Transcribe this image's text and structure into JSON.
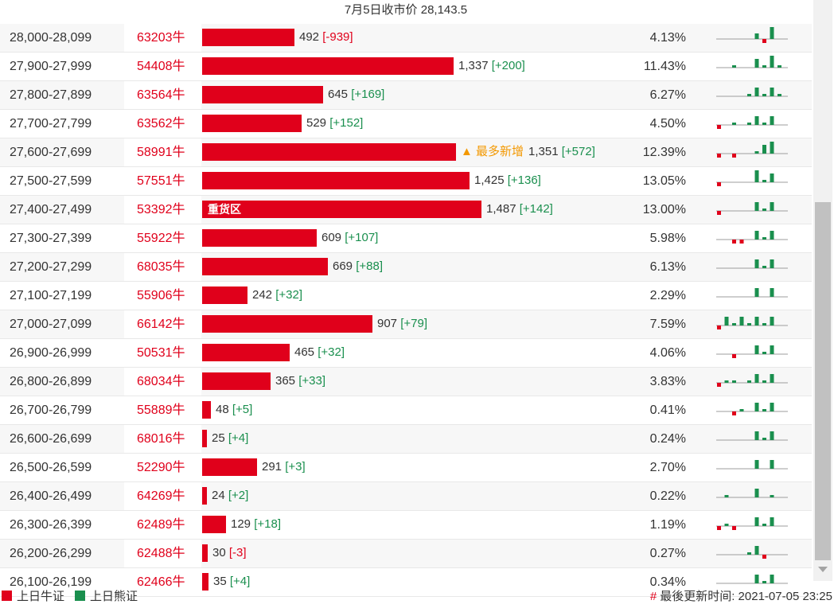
{
  "header": {
    "title": "7月5日收市价 28,143.5"
  },
  "colors": {
    "bull": "#e0001b",
    "bear": "#1a8f4e",
    "tag": "#f39800"
  },
  "max_volume": 1487,
  "rows": [
    {
      "range": "28,000-28,099",
      "code": "63203牛",
      "volume": 492,
      "vol_text": "492",
      "change": "[-939]",
      "change_sign": "neg",
      "pct": "4.13%",
      "spark": [
        [
          0,
          0
        ],
        [
          0,
          0
        ],
        [
          0,
          0
        ],
        [
          0,
          0
        ],
        [
          0,
          0
        ],
        [
          2,
          0
        ],
        [
          0,
          1
        ],
        [
          4,
          -3
        ],
        [
          0,
          0
        ],
        [
          0,
          0
        ]
      ]
    },
    {
      "range": "27,900-27,999",
      "code": "54408牛",
      "volume": 1337,
      "vol_text": "1,337",
      "change": "[+200]",
      "change_sign": "pos",
      "pct": "11.43%",
      "spark": [
        [
          0,
          0
        ],
        [
          0,
          0
        ],
        [
          1,
          0
        ],
        [
          0,
          0
        ],
        [
          0,
          0
        ],
        [
          3,
          0
        ],
        [
          1,
          0
        ],
        [
          4,
          0
        ],
        [
          1,
          0
        ],
        [
          0,
          0
        ]
      ]
    },
    {
      "range": "27,800-27,899",
      "code": "63564牛",
      "volume": 645,
      "vol_text": "645",
      "change": "[+169]",
      "change_sign": "pos",
      "pct": "6.27%",
      "spark": [
        [
          0,
          0
        ],
        [
          0,
          0
        ],
        [
          0,
          0
        ],
        [
          0,
          0
        ],
        [
          1,
          0
        ],
        [
          3,
          0
        ],
        [
          1,
          0
        ],
        [
          3,
          0
        ],
        [
          1,
          0
        ],
        [
          0,
          0
        ]
      ]
    },
    {
      "range": "27,700-27,799",
      "code": "63562牛",
      "volume": 529,
      "vol_text": "529",
      "change": "[+152]",
      "change_sign": "pos",
      "pct": "4.50%",
      "spark": [
        [
          0,
          1
        ],
        [
          0,
          0
        ],
        [
          1,
          0
        ],
        [
          0,
          0
        ],
        [
          1,
          0
        ],
        [
          3,
          0
        ],
        [
          1,
          0
        ],
        [
          3,
          0
        ],
        [
          0,
          0
        ],
        [
          0,
          0
        ]
      ]
    },
    {
      "range": "27,600-27,699",
      "code": "58991牛",
      "volume": 1351,
      "vol_text": "1,351",
      "change": "[+572]",
      "change_sign": "pos",
      "pct": "12.39%",
      "tag": "▲ 最多新增",
      "spark": [
        [
          0,
          1
        ],
        [
          0,
          0
        ],
        [
          0,
          1
        ],
        [
          0,
          0
        ],
        [
          0,
          0
        ],
        [
          1,
          0
        ],
        [
          3,
          0
        ],
        [
          4,
          0
        ],
        [
          0,
          0
        ],
        [
          0,
          0
        ]
      ]
    },
    {
      "range": "27,500-27,599",
      "code": "57551牛",
      "volume": 1425,
      "vol_text": "1,425",
      "change": "[+136]",
      "change_sign": "pos",
      "pct": "13.05%",
      "spark": [
        [
          0,
          1
        ],
        [
          0,
          0
        ],
        [
          0,
          0
        ],
        [
          0,
          0
        ],
        [
          0,
          0
        ],
        [
          4,
          0
        ],
        [
          1,
          0
        ],
        [
          3,
          0
        ],
        [
          0,
          0
        ],
        [
          0,
          0
        ]
      ]
    },
    {
      "range": "27,400-27,499",
      "code": "53392牛",
      "volume": 1487,
      "vol_text": "1,487",
      "change": "[+142]",
      "change_sign": "pos",
      "pct": "13.00%",
      "barlabel": "重货区",
      "spark": [
        [
          0,
          1
        ],
        [
          0,
          0
        ],
        [
          0,
          0
        ],
        [
          0,
          0
        ],
        [
          0,
          0
        ],
        [
          3,
          0
        ],
        [
          1,
          0
        ],
        [
          3,
          0
        ],
        [
          0,
          0
        ],
        [
          0,
          0
        ]
      ]
    },
    {
      "range": "27,300-27,399",
      "code": "55922牛",
      "volume": 609,
      "vol_text": "609",
      "change": "[+107]",
      "change_sign": "pos",
      "pct": "5.98%",
      "spark": [
        [
          0,
          0
        ],
        [
          0,
          0
        ],
        [
          0,
          1
        ],
        [
          0,
          1
        ],
        [
          0,
          0
        ],
        [
          3,
          0
        ],
        [
          1,
          0
        ],
        [
          3,
          0
        ],
        [
          0,
          0
        ],
        [
          0,
          0
        ]
      ]
    },
    {
      "range": "27,200-27,299",
      "code": "68035牛",
      "volume": 669,
      "vol_text": "669",
      "change": "[+88]",
      "change_sign": "pos",
      "pct": "6.13%",
      "spark": [
        [
          0,
          0
        ],
        [
          0,
          0
        ],
        [
          0,
          0
        ],
        [
          0,
          0
        ],
        [
          0,
          0
        ],
        [
          3,
          0
        ],
        [
          1,
          0
        ],
        [
          3,
          0
        ],
        [
          0,
          0
        ],
        [
          0,
          0
        ]
      ]
    },
    {
      "range": "27,100-27,199",
      "code": "55906牛",
      "volume": 242,
      "vol_text": "242",
      "change": "[+32]",
      "change_sign": "pos",
      "pct": "2.29%",
      "spark": [
        [
          0,
          0
        ],
        [
          0,
          0
        ],
        [
          0,
          0
        ],
        [
          0,
          0
        ],
        [
          0,
          0
        ],
        [
          3,
          0
        ],
        [
          0,
          0
        ],
        [
          3,
          0
        ],
        [
          0,
          0
        ],
        [
          0,
          0
        ]
      ]
    },
    {
      "range": "27,000-27,099",
      "code": "66142牛",
      "volume": 907,
      "vol_text": "907",
      "change": "[+79]",
      "change_sign": "pos",
      "pct": "7.59%",
      "spark": [
        [
          0,
          1
        ],
        [
          3,
          0
        ],
        [
          1,
          0
        ],
        [
          3,
          0
        ],
        [
          1,
          0
        ],
        [
          3,
          0
        ],
        [
          1,
          0
        ],
        [
          3,
          0
        ],
        [
          0,
          0
        ],
        [
          0,
          0
        ]
      ]
    },
    {
      "range": "26,900-26,999",
      "code": "50531牛",
      "volume": 465,
      "vol_text": "465",
      "change": "[+32]",
      "change_sign": "pos",
      "pct": "4.06%",
      "spark": [
        [
          0,
          0
        ],
        [
          0,
          0
        ],
        [
          0,
          1
        ],
        [
          0,
          0
        ],
        [
          0,
          0
        ],
        [
          3,
          0
        ],
        [
          1,
          0
        ],
        [
          3,
          0
        ],
        [
          0,
          0
        ],
        [
          0,
          0
        ]
      ]
    },
    {
      "range": "26,800-26,899",
      "code": "68034牛",
      "volume": 365,
      "vol_text": "365",
      "change": "[+33]",
      "change_sign": "pos",
      "pct": "3.83%",
      "spark": [
        [
          0,
          1
        ],
        [
          1,
          0
        ],
        [
          1,
          0
        ],
        [
          0,
          0
        ],
        [
          1,
          0
        ],
        [
          3,
          0
        ],
        [
          1,
          0
        ],
        [
          3,
          0
        ],
        [
          0,
          0
        ],
        [
          0,
          0
        ]
      ]
    },
    {
      "range": "26,700-26,799",
      "code": "55889牛",
      "volume": 48,
      "vol_text": "48",
      "change": "[+5]",
      "change_sign": "pos",
      "pct": "0.41%",
      "spark": [
        [
          0,
          0
        ],
        [
          0,
          0
        ],
        [
          0,
          1
        ],
        [
          1,
          0
        ],
        [
          0,
          0
        ],
        [
          3,
          0
        ],
        [
          1,
          0
        ],
        [
          3,
          0
        ],
        [
          0,
          0
        ],
        [
          0,
          0
        ]
      ]
    },
    {
      "range": "26,600-26,699",
      "code": "68016牛",
      "volume": 25,
      "vol_text": "25",
      "change": "[+4]",
      "change_sign": "pos",
      "pct": "0.24%",
      "spark": [
        [
          0,
          0
        ],
        [
          0,
          0
        ],
        [
          0,
          0
        ],
        [
          0,
          0
        ],
        [
          0,
          0
        ],
        [
          3,
          0
        ],
        [
          1,
          0
        ],
        [
          3,
          0
        ],
        [
          0,
          0
        ],
        [
          0,
          0
        ]
      ]
    },
    {
      "range": "26,500-26,599",
      "code": "52290牛",
      "volume": 291,
      "vol_text": "291",
      "change": "[+3]",
      "change_sign": "pos",
      "pct": "2.70%",
      "spark": [
        [
          0,
          0
        ],
        [
          0,
          0
        ],
        [
          0,
          0
        ],
        [
          0,
          0
        ],
        [
          0,
          0
        ],
        [
          3,
          0
        ],
        [
          0,
          0
        ],
        [
          3,
          0
        ],
        [
          0,
          0
        ],
        [
          0,
          0
        ]
      ]
    },
    {
      "range": "26,400-26,499",
      "code": "64269牛",
      "volume": 24,
      "vol_text": "24",
      "change": "[+2]",
      "change_sign": "pos",
      "pct": "0.22%",
      "spark": [
        [
          0,
          0
        ],
        [
          1,
          0
        ],
        [
          0,
          0
        ],
        [
          0,
          0
        ],
        [
          0,
          0
        ],
        [
          3,
          0
        ],
        [
          0,
          0
        ],
        [
          1,
          0
        ],
        [
          0,
          0
        ],
        [
          0,
          0
        ]
      ]
    },
    {
      "range": "26,300-26,399",
      "code": "62489牛",
      "volume": 129,
      "vol_text": "129",
      "change": "[+18]",
      "change_sign": "pos",
      "pct": "1.19%",
      "spark": [
        [
          0,
          1
        ],
        [
          1,
          0
        ],
        [
          0,
          1
        ],
        [
          0,
          0
        ],
        [
          0,
          0
        ],
        [
          3,
          0
        ],
        [
          1,
          0
        ],
        [
          3,
          0
        ],
        [
          0,
          0
        ],
        [
          0,
          0
        ]
      ]
    },
    {
      "range": "26,200-26,299",
      "code": "62488牛",
      "volume": 30,
      "vol_text": "30",
      "change": "[-3]",
      "change_sign": "neg",
      "pct": "0.27%",
      "spark": [
        [
          0,
          0
        ],
        [
          0,
          0
        ],
        [
          0,
          0
        ],
        [
          0,
          0
        ],
        [
          1,
          0
        ],
        [
          3,
          0
        ],
        [
          0,
          1
        ],
        [
          0,
          0
        ],
        [
          0,
          0
        ],
        [
          0,
          0
        ]
      ]
    },
    {
      "range": "26,100-26,199",
      "code": "62466牛",
      "volume": 35,
      "vol_text": "35",
      "change": "[+4]",
      "change_sign": "pos",
      "pct": "0.34%",
      "spark": [
        [
          0,
          0
        ],
        [
          0,
          0
        ],
        [
          0,
          0
        ],
        [
          0,
          0
        ],
        [
          0,
          0
        ],
        [
          3,
          0
        ],
        [
          1,
          0
        ],
        [
          3,
          0
        ],
        [
          0,
          0
        ],
        [
          0,
          0
        ]
      ]
    }
  ],
  "footer": {
    "legend_bull": "上日牛证",
    "legend_bear": "上日熊证",
    "updated_prefix": "#",
    "updated_label": "最後更新时间: 2021-07-05 23:25"
  }
}
